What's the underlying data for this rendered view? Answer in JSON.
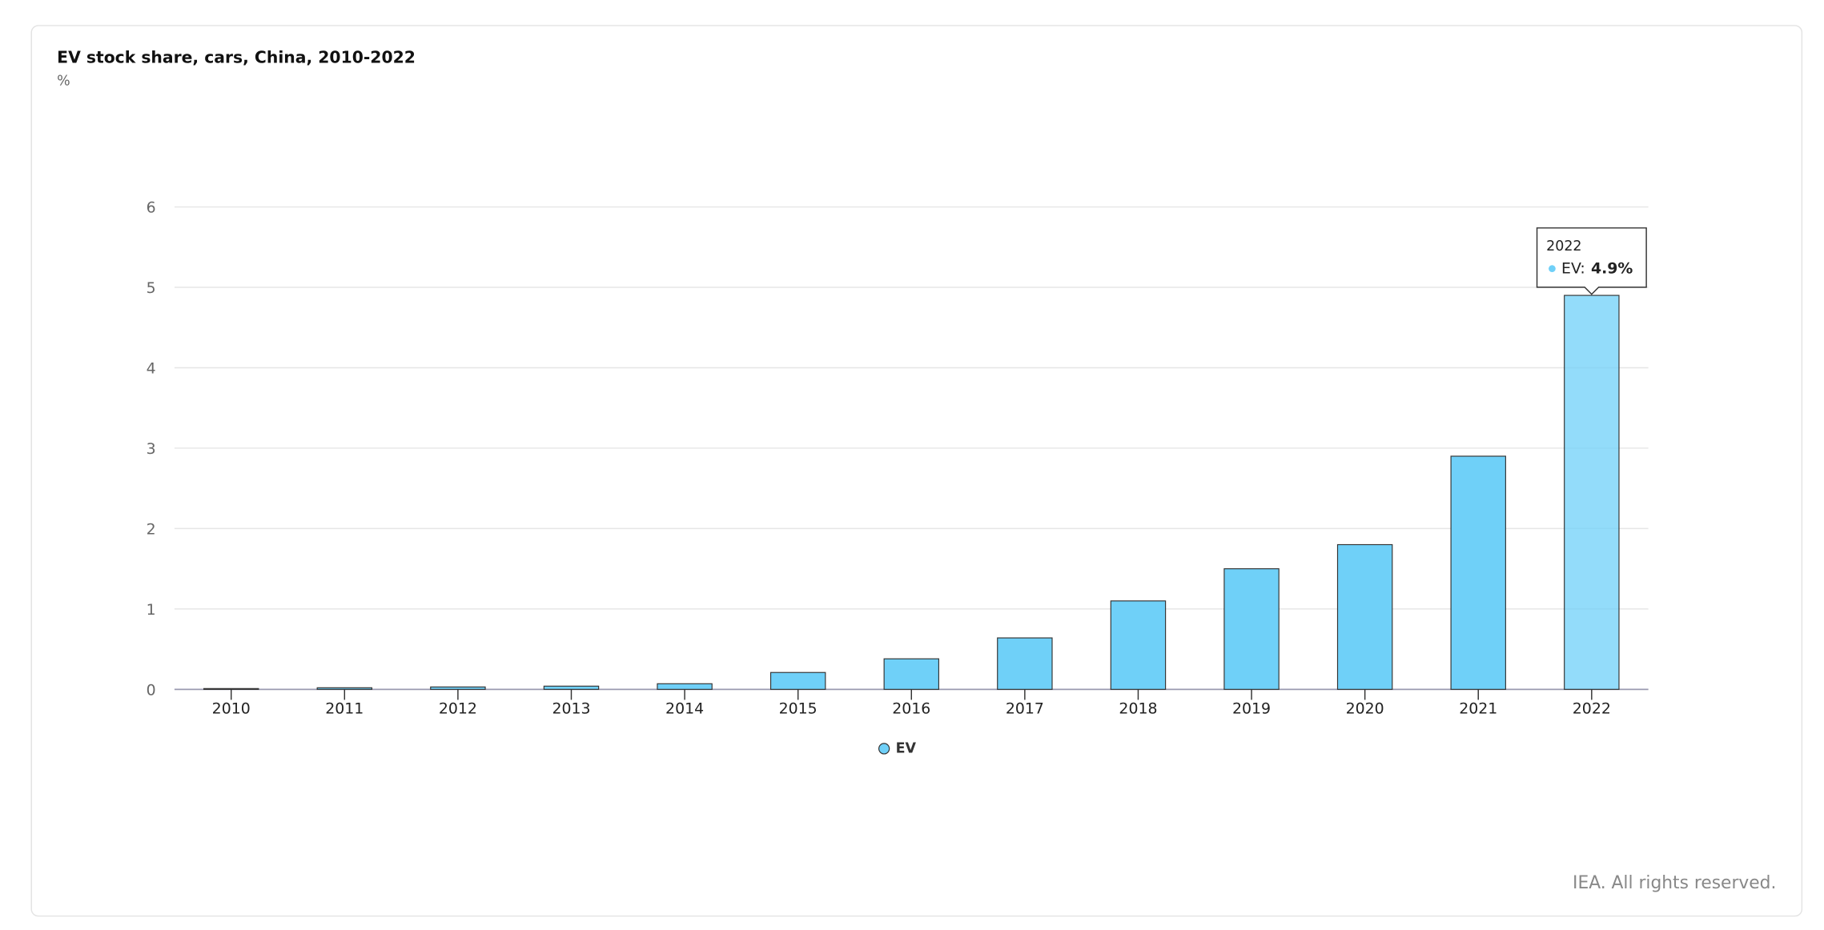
{
  "chart_data": {
    "type": "bar",
    "title": "EV stock share, cars, China, 2010-2022",
    "subtitle": "%",
    "categories": [
      "2010",
      "2011",
      "2012",
      "2013",
      "2014",
      "2015",
      "2016",
      "2017",
      "2018",
      "2019",
      "2020",
      "2021",
      "2022"
    ],
    "series": [
      {
        "name": "EV",
        "color": "#6fd0f8",
        "values": [
          0.01,
          0.02,
          0.03,
          0.04,
          0.07,
          0.21,
          0.38,
          0.64,
          1.1,
          1.5,
          1.8,
          2.9,
          4.9
        ]
      }
    ],
    "ylim": [
      0,
      6
    ],
    "yticks": [
      0,
      1,
      2,
      3,
      4,
      5,
      6
    ],
    "grid": true,
    "legend": "bottom",
    "tooltip": {
      "title": "2022",
      "series": "EV:",
      "value": "4.9%"
    },
    "source_note": "IEA. All rights reserved."
  }
}
